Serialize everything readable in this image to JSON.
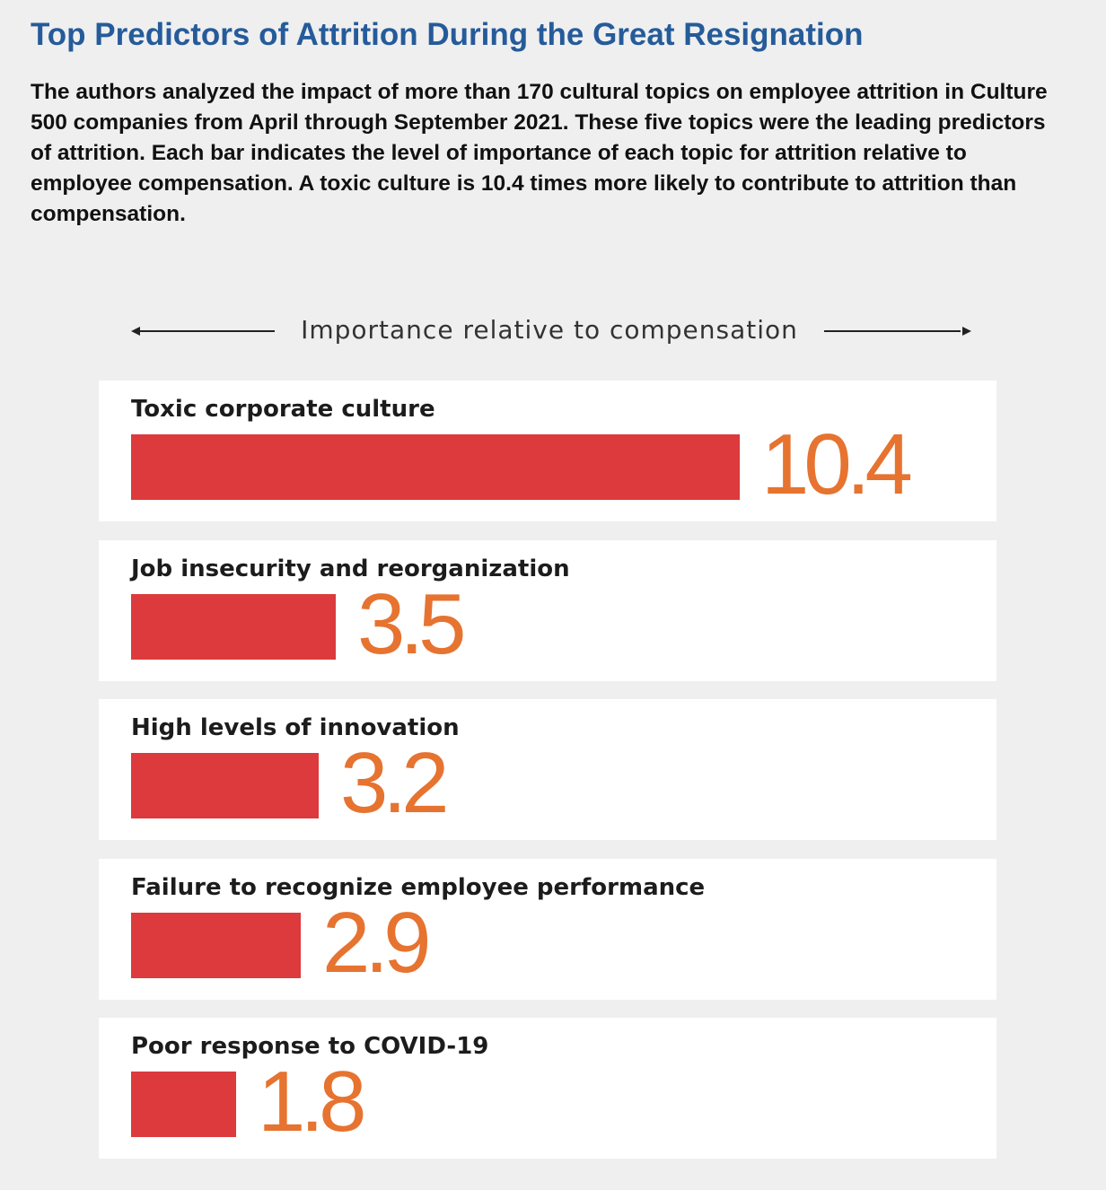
{
  "header": {
    "title": "Top Predictors of Attrition During the Great Resignation",
    "description": "The authors analyzed the impact of more than 170 cultural topics on employee attrition in Culture 500 companies from April through September 2021. These five topics were the leading predictors of attrition. Each bar indicates the level of importance of each topic for attrition relative to employee compensation. A toxic culture is 10.4 times more likely to contribute to attrition than compensation."
  },
  "colors": {
    "title": "#255b9a",
    "bar": "#dc3a3c",
    "value_label": "#e67330",
    "panel": "#ffffff",
    "background": "#efefef"
  },
  "chart_data": {
    "type": "bar",
    "orientation": "horizontal",
    "xlabel": "Importance relative to compensation",
    "categories": [
      "Toxic corporate culture",
      "Job insecurity and reorganization",
      "High levels of innovation",
      "Failure to recognize employee performance",
      "Poor response to COVID-19"
    ],
    "values": [
      10.4,
      3.5,
      3.2,
      2.9,
      1.8
    ],
    "value_labels": [
      "10.4",
      "3.5",
      "3.2",
      "2.9",
      "1.8"
    ],
    "xlim": [
      0,
      10.4
    ],
    "grid": false,
    "legend": false
  }
}
